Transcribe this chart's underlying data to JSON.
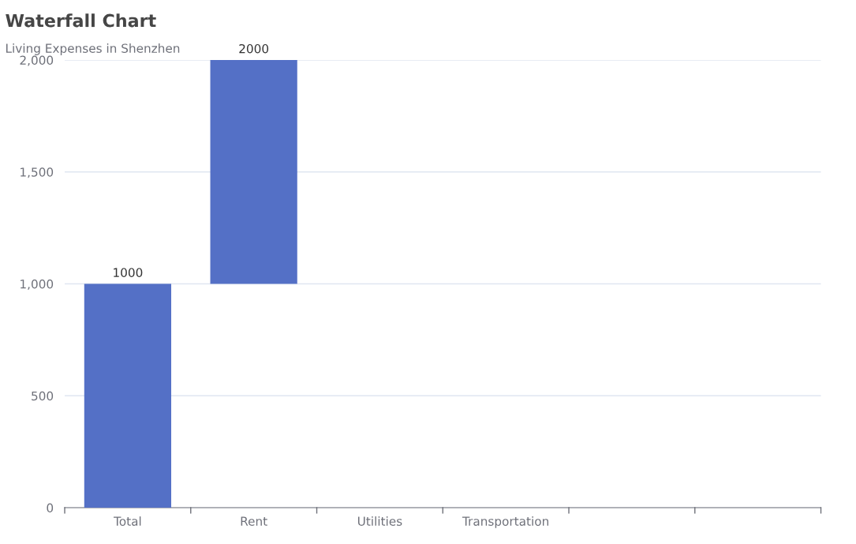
{
  "chart_data": {
    "type": "bar",
    "title": "Waterfall Chart",
    "subtitle": "Living Expenses in Shenzhen",
    "categories": [
      "Total",
      "Rent",
      "Utilities",
      "Transportation",
      null,
      null
    ],
    "values": [
      1000,
      1000,
      null,
      null,
      null,
      null
    ],
    "base": [
      0,
      1000,
      null,
      null,
      null,
      null
    ],
    "value_labels": [
      "1000",
      "2000",
      null,
      null,
      null,
      null
    ],
    "color": "#5470c6",
    "ylim": [
      0,
      2000
    ],
    "yticks": [
      0,
      {
        "value": 500,
        "label": "500"
      },
      {
        "value": 1000,
        "label": "1,000"
      },
      {
        "value": 1500,
        "label": "1,500"
      },
      {
        "value": 2000,
        "label": "2,000"
      }
    ],
    "grid": "y"
  }
}
